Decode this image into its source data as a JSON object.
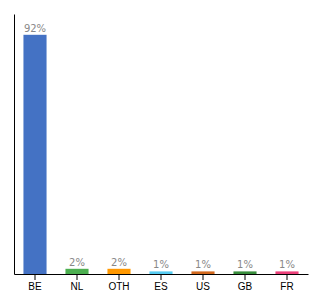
{
  "chart_data": {
    "type": "bar",
    "categories": [
      "BE",
      "NL",
      "OTH",
      "ES",
      "US",
      "GB",
      "FR"
    ],
    "values": [
      92,
      2,
      2,
      1,
      1,
      1,
      1
    ],
    "value_labels": [
      "92%",
      "2%",
      "2%",
      "1%",
      "1%",
      "1%",
      "1%"
    ],
    "colors": [
      "#4472C4",
      "#4CAF50",
      "#FF9800",
      "#56CCF2",
      "#D2691E",
      "#388E3C",
      "#EC407A"
    ],
    "ylim": [
      0,
      100
    ],
    "data_labels": true,
    "tick_labels": "x",
    "grid": false
  }
}
